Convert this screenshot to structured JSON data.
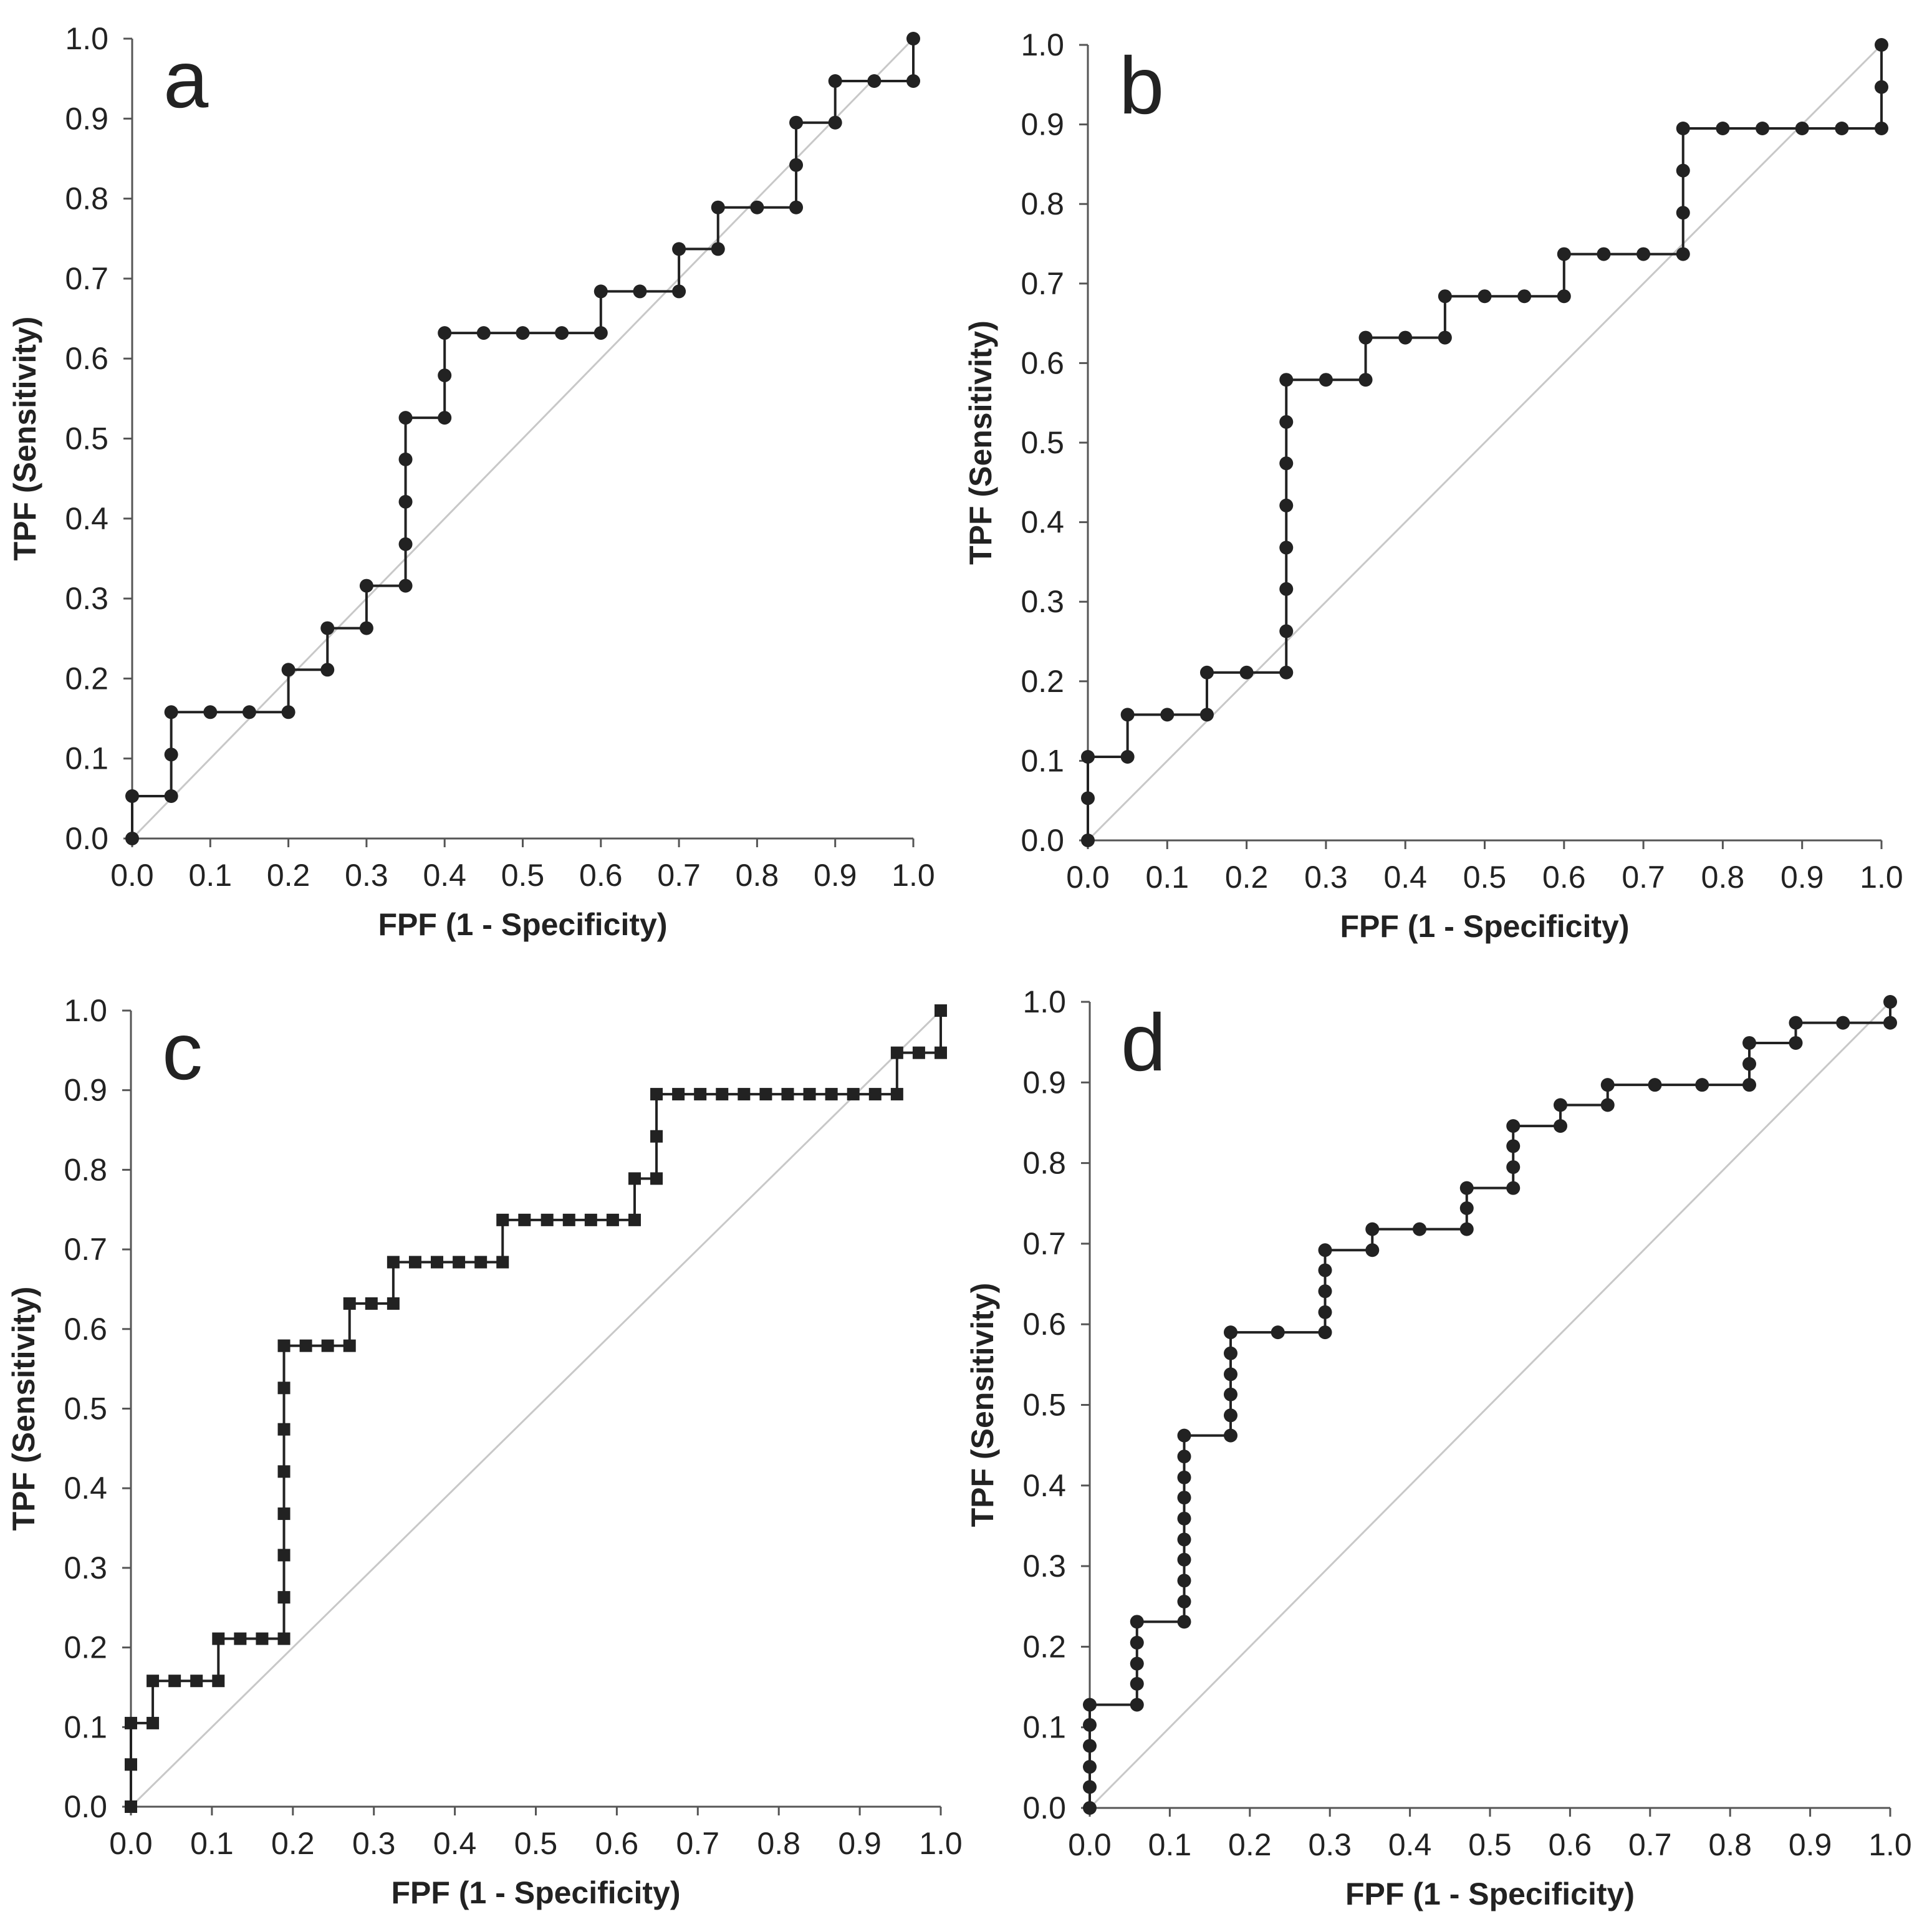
{
  "colors": {
    "curve": "#222222",
    "axis": "#555555",
    "diagonal": "#c8c8c8"
  },
  "chart_data": [
    {
      "type": "line",
      "panel": "a",
      "marker": "circle",
      "xlabel": "FPF (1 - Specificity)",
      "ylabel": "TPF (Sensitivity)",
      "xlim": [
        0,
        1
      ],
      "ylim": [
        0,
        1
      ],
      "xticks": [
        "0.0",
        "0.1",
        "0.2",
        "0.3",
        "0.4",
        "0.5",
        "0.6",
        "0.7",
        "0.8",
        "0.9",
        "1.0"
      ],
      "yticks": [
        "0.0",
        "0.1",
        "0.2",
        "0.3",
        "0.4",
        "0.5",
        "0.6",
        "0.7",
        "0.8",
        "0.9",
        "1.0"
      ],
      "reference_line": "diagonal",
      "x": [
        0,
        0,
        0.05,
        0.05,
        0.05,
        0.1,
        0.15,
        0.2,
        0.2,
        0.25,
        0.25,
        0.3,
        0.3,
        0.35,
        0.35,
        0.35,
        0.35,
        0.35,
        0.4,
        0.4,
        0.4,
        0.45,
        0.5,
        0.55,
        0.6,
        0.6,
        0.65,
        0.7,
        0.7,
        0.75,
        0.75,
        0.8,
        0.85,
        0.85,
        0.85,
        0.9,
        0.9,
        0.95,
        1,
        1
      ],
      "y": [
        0,
        0.053,
        0.053,
        0.105,
        0.158,
        0.158,
        0.158,
        0.158,
        0.211,
        0.211,
        0.263,
        0.263,
        0.316,
        0.316,
        0.368,
        0.421,
        0.474,
        0.526,
        0.526,
        0.579,
        0.632,
        0.632,
        0.632,
        0.632,
        0.632,
        0.684,
        0.684,
        0.684,
        0.737,
        0.737,
        0.789,
        0.789,
        0.789,
        0.842,
        0.895,
        0.895,
        0.947,
        0.947,
        0.947,
        1.0
      ]
    },
    {
      "type": "line",
      "panel": "b",
      "marker": "circle",
      "xlabel": "FPF (1 - Specificity)",
      "ylabel": "TPF (Sensitivity)",
      "xlim": [
        0,
        1
      ],
      "ylim": [
        0,
        1
      ],
      "xticks": [
        "0.0",
        "0.1",
        "0.2",
        "0.3",
        "0.4",
        "0.5",
        "0.6",
        "0.7",
        "0.8",
        "0.9",
        "1.0"
      ],
      "yticks": [
        "0.0",
        "0.1",
        "0.2",
        "0.3",
        "0.4",
        "0.5",
        "0.6",
        "0.7",
        "0.8",
        "0.9",
        "1.0"
      ],
      "reference_line": "diagonal",
      "x": [
        0,
        0,
        0,
        0.05,
        0.05,
        0.1,
        0.15,
        0.15,
        0.2,
        0.25,
        0.25,
        0.25,
        0.25,
        0.25,
        0.25,
        0.25,
        0.25,
        0.3,
        0.35,
        0.35,
        0.4,
        0.45,
        0.45,
        0.5,
        0.55,
        0.6,
        0.6,
        0.65,
        0.7,
        0.75,
        0.75,
        0.75,
        0.75,
        0.8,
        0.85,
        0.9,
        0.95,
        1,
        1,
        1
      ],
      "y": [
        0,
        0.053,
        0.105,
        0.105,
        0.158,
        0.158,
        0.158,
        0.211,
        0.211,
        0.211,
        0.263,
        0.316,
        0.368,
        0.421,
        0.474,
        0.526,
        0.579,
        0.579,
        0.579,
        0.632,
        0.632,
        0.632,
        0.684,
        0.684,
        0.684,
        0.684,
        0.737,
        0.737,
        0.737,
        0.737,
        0.789,
        0.842,
        0.895,
        0.895,
        0.895,
        0.895,
        0.895,
        0.895,
        0.947,
        1.0
      ]
    },
    {
      "type": "line",
      "panel": "c",
      "marker": "square",
      "xlabel": "FPF (1 - Specificity)",
      "ylabel": "TPF (Sensitivity)",
      "xlim": [
        0,
        1
      ],
      "ylim": [
        0,
        1
      ],
      "xticks": [
        "0.0",
        "0.1",
        "0.2",
        "0.3",
        "0.4",
        "0.5",
        "0.6",
        "0.7",
        "0.8",
        "0.9",
        "1.0"
      ],
      "yticks": [
        "0.0",
        "0.1",
        "0.2",
        "0.3",
        "0.4",
        "0.5",
        "0.6",
        "0.7",
        "0.8",
        "0.9",
        "1.0"
      ],
      "reference_line": "diagonal",
      "x": [
        0,
        0,
        0,
        0.027,
        0.027,
        0.054,
        0.081,
        0.108,
        0.108,
        0.135,
        0.162,
        0.189,
        0.189,
        0.189,
        0.189,
        0.189,
        0.189,
        0.189,
        0.189,
        0.189,
        0.216,
        0.243,
        0.27,
        0.27,
        0.297,
        0.324,
        0.324,
        0.351,
        0.378,
        0.405,
        0.432,
        0.459,
        0.459,
        0.486,
        0.514,
        0.541,
        0.568,
        0.595,
        0.622,
        0.622,
        0.649,
        0.649,
        0.649,
        0.676,
        0.703,
        0.73,
        0.757,
        0.784,
        0.811,
        0.838,
        0.865,
        0.892,
        0.919,
        0.946,
        0.946,
        0.973,
        1,
        1
      ],
      "y": [
        0,
        0.053,
        0.105,
        0.105,
        0.158,
        0.158,
        0.158,
        0.158,
        0.211,
        0.211,
        0.211,
        0.211,
        0.263,
        0.316,
        0.368,
        0.421,
        0.474,
        0.526,
        0.579,
        0.579,
        0.579,
        0.579,
        0.579,
        0.632,
        0.632,
        0.632,
        0.684,
        0.684,
        0.684,
        0.684,
        0.684,
        0.684,
        0.737,
        0.737,
        0.737,
        0.737,
        0.737,
        0.737,
        0.737,
        0.789,
        0.789,
        0.842,
        0.895,
        0.895,
        0.895,
        0.895,
        0.895,
        0.895,
        0.895,
        0.895,
        0.895,
        0.895,
        0.895,
        0.895,
        0.947,
        0.947,
        0.947,
        1.0
      ]
    },
    {
      "type": "line",
      "panel": "d",
      "marker": "circle",
      "xlabel": "FPF (1 - Specificity)",
      "ylabel": "TPF (Sensitivity)",
      "xlim": [
        0,
        1
      ],
      "ylim": [
        0,
        1
      ],
      "xticks": [
        "0.0",
        "0.1",
        "0.2",
        "0.3",
        "0.4",
        "0.5",
        "0.6",
        "0.7",
        "0.8",
        "0.9",
        "1.0"
      ],
      "yticks": [
        "0.0",
        "0.1",
        "0.2",
        "0.3",
        "0.4",
        "0.5",
        "0.6",
        "0.7",
        "0.8",
        "0.9",
        "1.0"
      ],
      "reference_line": "diagonal",
      "x": [
        0,
        0,
        0,
        0,
        0,
        0,
        0.059,
        0.059,
        0.059,
        0.059,
        0.059,
        0.118,
        0.118,
        0.118,
        0.118,
        0.118,
        0.118,
        0.118,
        0.118,
        0.118,
        0.118,
        0.176,
        0.176,
        0.176,
        0.176,
        0.176,
        0.176,
        0.235,
        0.294,
        0.294,
        0.294,
        0.294,
        0.294,
        0.353,
        0.353,
        0.412,
        0.471,
        0.471,
        0.471,
        0.529,
        0.529,
        0.529,
        0.529,
        0.588,
        0.588,
        0.647,
        0.647,
        0.706,
        0.765,
        0.824,
        0.824,
        0.824,
        0.882,
        0.882,
        0.941,
        1,
        1
      ],
      "y": [
        0,
        0.026,
        0.051,
        0.077,
        0.103,
        0.128,
        0.128,
        0.154,
        0.179,
        0.205,
        0.231,
        0.231,
        0.256,
        0.282,
        0.308,
        0.333,
        0.359,
        0.385,
        0.41,
        0.436,
        0.462,
        0.462,
        0.487,
        0.513,
        0.538,
        0.564,
        0.59,
        0.59,
        0.59,
        0.615,
        0.641,
        0.667,
        0.692,
        0.692,
        0.718,
        0.718,
        0.718,
        0.744,
        0.769,
        0.769,
        0.795,
        0.821,
        0.846,
        0.846,
        0.872,
        0.872,
        0.897,
        0.897,
        0.897,
        0.897,
        0.923,
        0.949,
        0.949,
        0.974,
        0.974,
        0.974,
        1.0
      ]
    }
  ]
}
